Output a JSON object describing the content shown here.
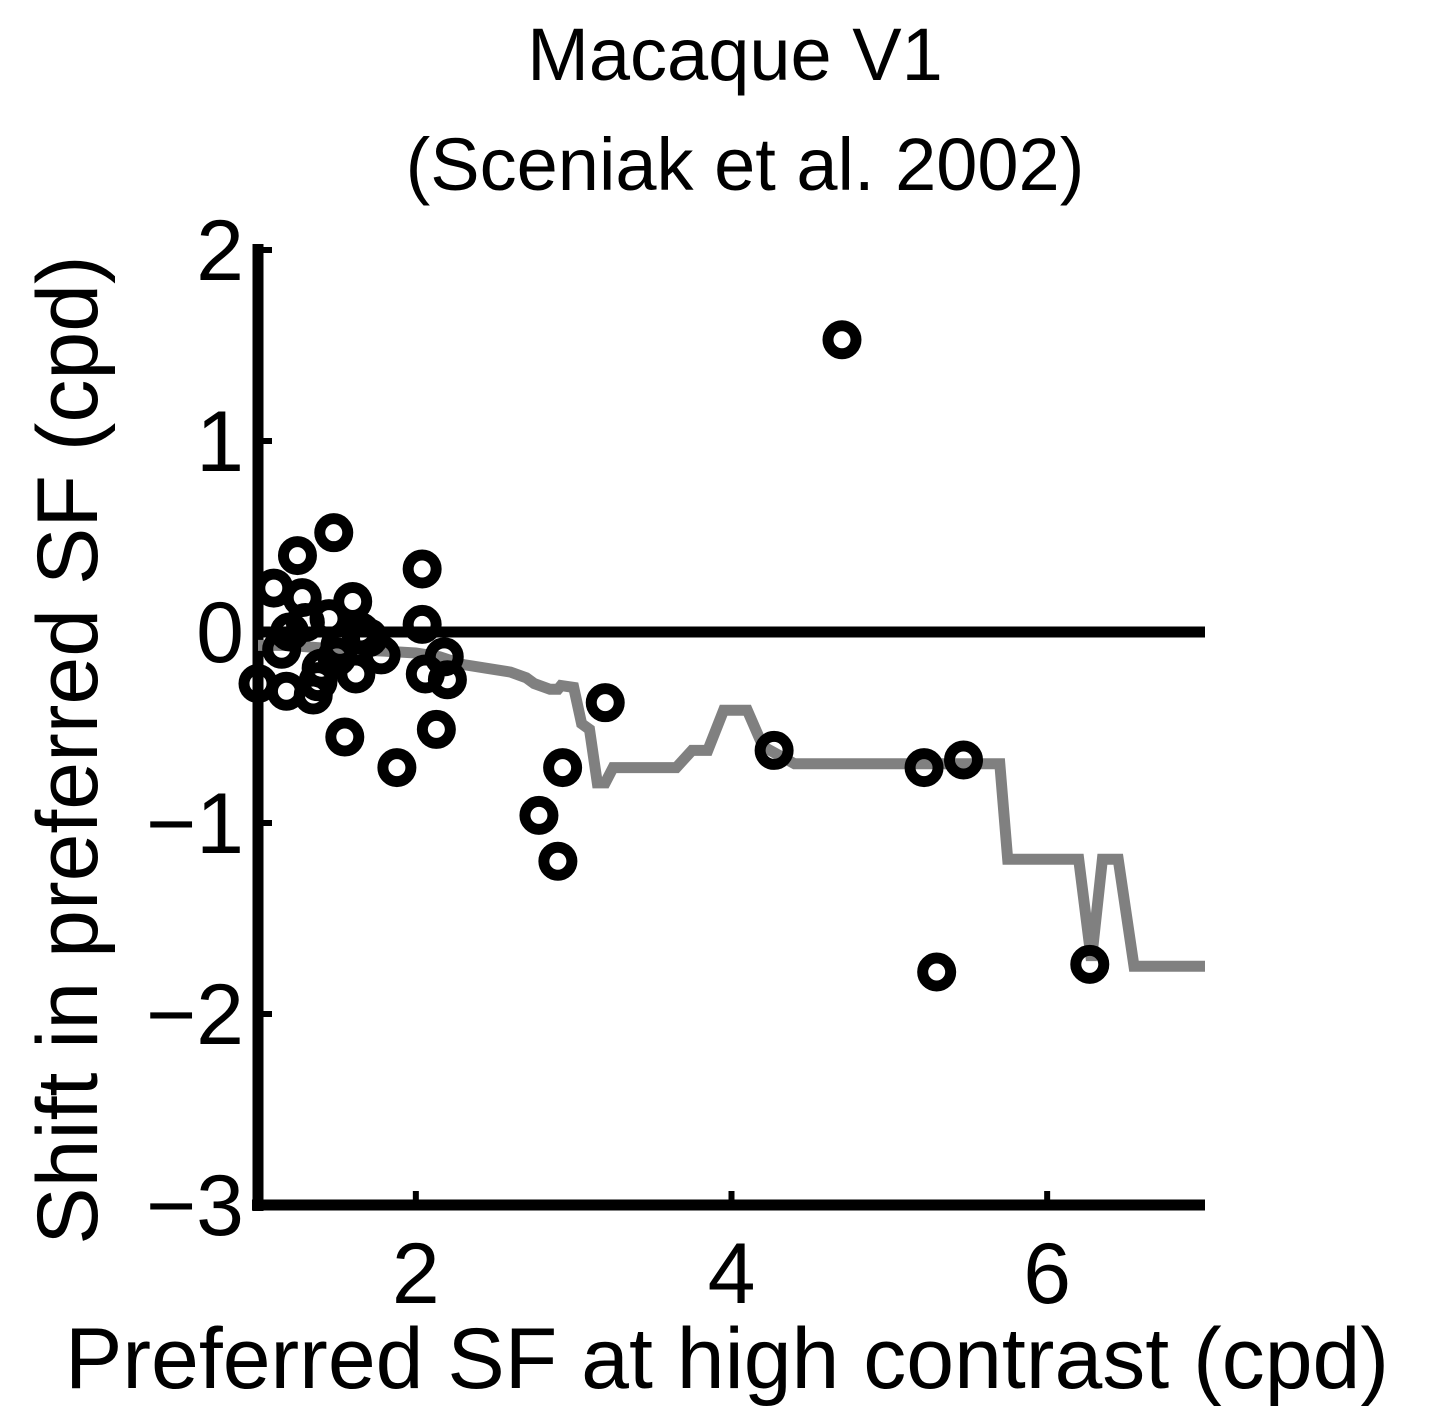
{
  "chart_data": {
    "type": "scatter",
    "title": "Macaque V1",
    "subtitle": "(Sceniak et al. 2002)",
    "xlabel": "Preferred SF at high contrast (cpd)",
    "ylabel": "Shift in preferred SF (cpd)",
    "xlim": [
      1,
      7
    ],
    "ylim": [
      -3,
      2
    ],
    "xticks": [
      2,
      4,
      6
    ],
    "yticks": [
      2,
      1,
      0,
      -1,
      -2,
      -3
    ],
    "xtick_labels": [
      "2",
      "4",
      "6"
    ],
    "ytick_labels": [
      "2",
      "1",
      "0",
      "−1",
      "−2",
      "−3"
    ],
    "grid": false,
    "reference_line_y": 0,
    "colors": {
      "points": "#000000",
      "trend": "#808080",
      "axes": "#000000"
    },
    "series": [
      {
        "type": "scatter",
        "points": [
          [
            1.0,
            -0.27
          ],
          [
            1.1,
            0.23
          ],
          [
            1.18,
            -0.31
          ],
          [
            1.15,
            -0.09
          ],
          [
            1.2,
            0.0
          ],
          [
            1.25,
            0.4
          ],
          [
            1.28,
            0.18
          ],
          [
            1.3,
            0.05
          ],
          [
            1.35,
            -0.33
          ],
          [
            1.38,
            -0.26
          ],
          [
            1.4,
            -0.19
          ],
          [
            1.45,
            0.07
          ],
          [
            1.48,
            0.52
          ],
          [
            1.5,
            -0.13
          ],
          [
            1.52,
            -0.07
          ],
          [
            1.55,
            -0.55
          ],
          [
            1.6,
            0.16
          ],
          [
            1.62,
            -0.22
          ],
          [
            1.65,
            0.0
          ],
          [
            1.7,
            -0.03
          ],
          [
            1.78,
            -0.12
          ],
          [
            1.88,
            -0.71
          ],
          [
            2.04,
            0.33
          ],
          [
            2.04,
            0.04
          ],
          [
            2.06,
            -0.22
          ],
          [
            2.13,
            -0.51
          ],
          [
            2.18,
            -0.13
          ],
          [
            2.2,
            -0.25
          ],
          [
            2.78,
            -0.96
          ],
          [
            2.9,
            -1.2
          ],
          [
            2.93,
            -0.71
          ],
          [
            3.2,
            -0.37
          ],
          [
            4.27,
            -0.62
          ],
          [
            4.7,
            1.53
          ],
          [
            5.22,
            -0.71
          ],
          [
            5.3,
            -1.78
          ],
          [
            5.47,
            -0.67
          ],
          [
            6.27,
            -1.74
          ]
        ]
      },
      {
        "type": "line",
        "points": [
          [
            1.0,
            -0.07
          ],
          [
            1.2,
            -0.07
          ],
          [
            1.5,
            -0.09
          ],
          [
            1.8,
            -0.1
          ],
          [
            2.0,
            -0.11
          ],
          [
            2.15,
            -0.13
          ],
          [
            2.3,
            -0.17
          ],
          [
            2.45,
            -0.19
          ],
          [
            2.6,
            -0.21
          ],
          [
            2.7,
            -0.24
          ],
          [
            2.75,
            -0.27
          ],
          [
            2.85,
            -0.3
          ],
          [
            2.9,
            -0.3
          ],
          [
            2.92,
            -0.28
          ],
          [
            3.0,
            -0.29
          ],
          [
            3.05,
            -0.48
          ],
          [
            3.1,
            -0.51
          ],
          [
            3.15,
            -0.79
          ],
          [
            3.2,
            -0.79
          ],
          [
            3.25,
            -0.71
          ],
          [
            3.65,
            -0.71
          ],
          [
            3.75,
            -0.62
          ],
          [
            3.85,
            -0.62
          ],
          [
            3.95,
            -0.41
          ],
          [
            4.1,
            -0.41
          ],
          [
            4.2,
            -0.6
          ],
          [
            4.4,
            -0.69
          ],
          [
            5.7,
            -0.69
          ],
          [
            5.75,
            -1.19
          ],
          [
            6.2,
            -1.19
          ],
          [
            6.28,
            -1.72
          ],
          [
            6.35,
            -1.19
          ],
          [
            6.45,
            -1.19
          ],
          [
            6.55,
            -1.75
          ],
          [
            7.0,
            -1.75
          ]
        ]
      }
    ]
  }
}
